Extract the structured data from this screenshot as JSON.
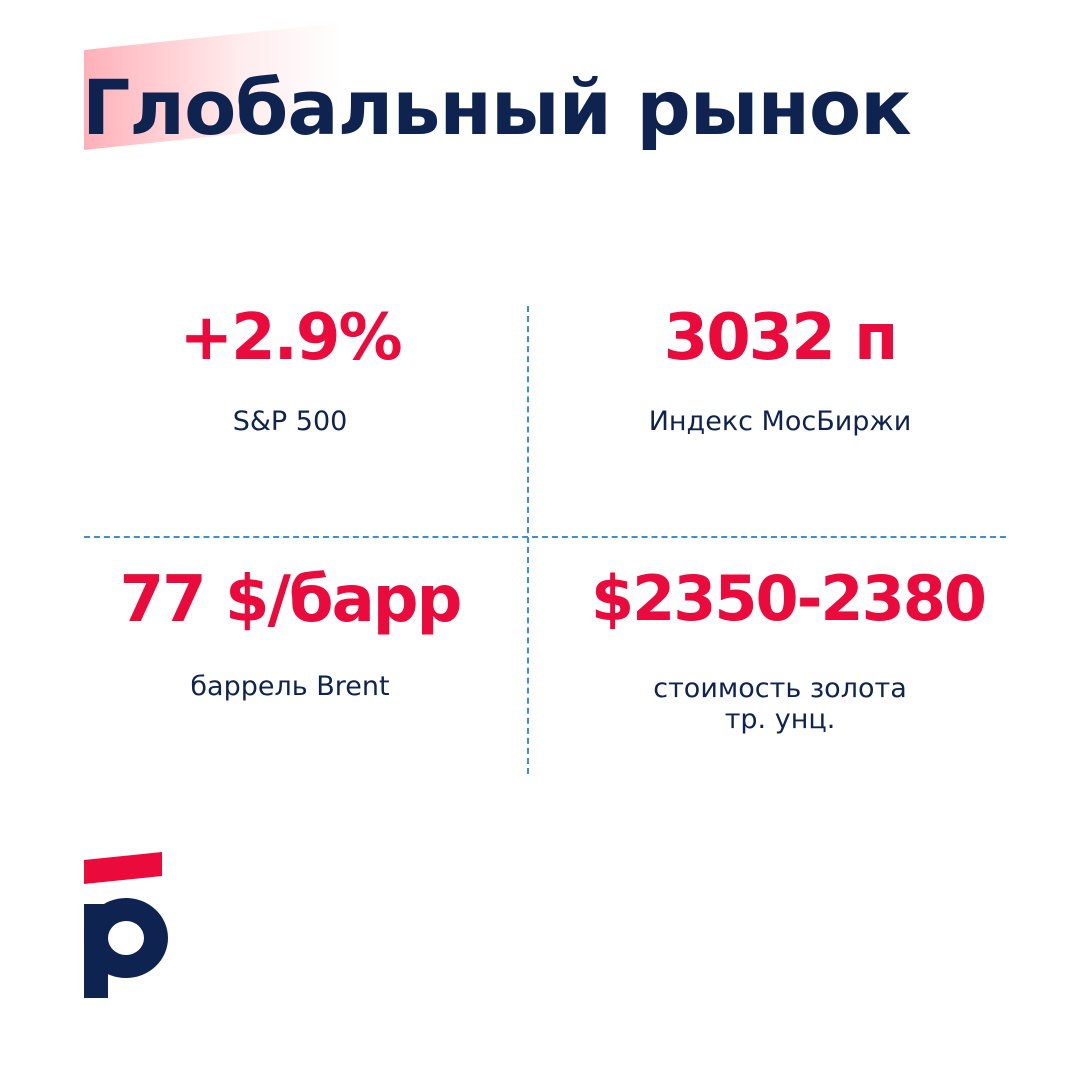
{
  "header": {
    "title": "Глобальный рынок"
  },
  "metrics": [
    {
      "value": "+2.9%",
      "label": "S&P 500"
    },
    {
      "value": "3032 п",
      "label": "Индекс МосБиржи"
    },
    {
      "value": "77 $/барр",
      "label": "баррель Brent"
    },
    {
      "value": "$2350-2380",
      "label_line1": "стоимость золота",
      "label_line2": "тр. унц."
    }
  ],
  "colors": {
    "accent": "#ea0a3c",
    "navy": "#0e2350",
    "divider": "#3a8fd6"
  },
  "logo": {
    "icon": "brand-logo-icon"
  }
}
